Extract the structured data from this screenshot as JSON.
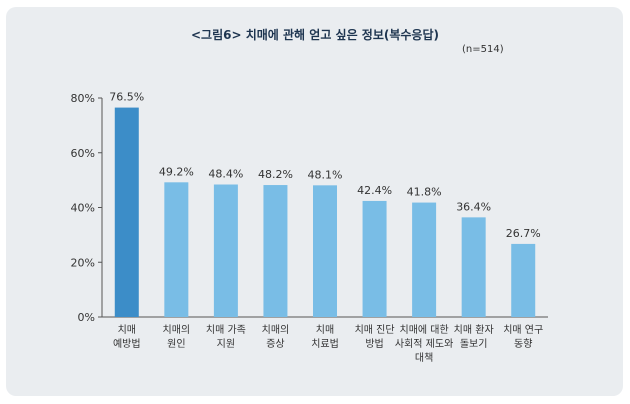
{
  "chart_data": {
    "type": "bar",
    "title": "<그림6> 치매에 관해 얻고 싶은 정보(복수응답)",
    "subtitle": "(n=514)",
    "categories": [
      [
        "치매",
        "예방법"
      ],
      [
        "치매의",
        "원인"
      ],
      [
        "치매 가족",
        "지원"
      ],
      [
        "치매의",
        "증상"
      ],
      [
        "치매",
        "치료법"
      ],
      [
        "치매 진단",
        "방법"
      ],
      [
        "치매에 대한",
        "사회적 제도와",
        "대책"
      ],
      [
        "치매 환자",
        "돌보기"
      ],
      [
        "치매 연구",
        "동향"
      ]
    ],
    "values": [
      76.5,
      49.2,
      48.4,
      48.2,
      48.1,
      42.4,
      41.8,
      36.4,
      26.7
    ],
    "value_labels": [
      "76.5%",
      "49.2%",
      "48.4%",
      "48.2%",
      "48.1%",
      "42.4%",
      "41.8%",
      "36.4%",
      "26.7%"
    ],
    "ylim": [
      0,
      80
    ],
    "y_ticks": [
      0,
      20,
      40,
      60,
      80
    ],
    "y_tick_labels": [
      "0%",
      "20%",
      "40%",
      "60%",
      "80%"
    ],
    "grid": false,
    "colors": {
      "highlight": "#3c8dc8",
      "bar": "#79bde6",
      "axis": "#555555",
      "panel": "#eaedf0",
      "title": "#1e3550"
    }
  }
}
